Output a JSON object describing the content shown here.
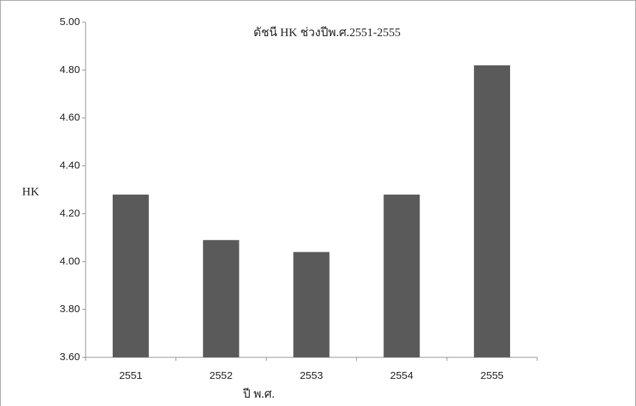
{
  "chart_data": {
    "type": "bar",
    "title": "ดัชนี HK ช่วงปีพ.ศ.2551-2555",
    "y_label": "HK",
    "x_label": "ปี พ.ศ.",
    "categories": [
      "2551",
      "2552",
      "2553",
      "2554",
      "2555"
    ],
    "values": [
      4.28,
      4.09,
      4.04,
      4.28,
      4.82
    ],
    "color": "#5a5a5a",
    "ylim": [
      3.6,
      5.0
    ],
    "yticks": [
      {
        "value": 3.6,
        "label": "3.60"
      },
      {
        "value": 3.8,
        "label": "3.80"
      },
      {
        "value": 4.0,
        "label": "4.00"
      },
      {
        "value": 4.2,
        "label": "4.20"
      },
      {
        "value": 4.4,
        "label": "4.40"
      },
      {
        "value": 4.6,
        "label": "4.60"
      },
      {
        "value": 4.8,
        "label": "4.80"
      },
      {
        "value": 5.0,
        "label": "5.00"
      }
    ],
    "grid": false
  }
}
